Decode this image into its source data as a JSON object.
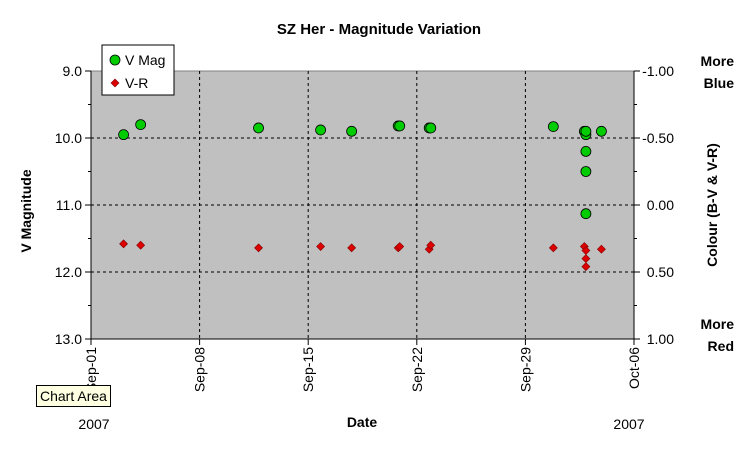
{
  "chart_data": {
    "type": "scatter",
    "title": "SZ Her - Magnitude Variation",
    "xlabel": "Date",
    "ylabel_left": "V Magnitude",
    "ylabel_right": "Colour (B-V & V-R)",
    "right_top_label": [
      "More",
      "Blue"
    ],
    "right_bottom_label": [
      "More",
      "Red"
    ],
    "year_left": "2007",
    "year_right": "2007",
    "x_ticks": [
      "Sep-01",
      "Sep-08",
      "Sep-15",
      "Sep-22",
      "Sep-29",
      "Oct-06"
    ],
    "x_range_days": [
      0,
      35
    ],
    "y_left_range": [
      9.0,
      13.0
    ],
    "y_left_inverted": true,
    "y_left_ticks": [
      "9.0",
      "10.0",
      "11.0",
      "12.0",
      "13.0"
    ],
    "y_right_range": [
      -1.0,
      1.0
    ],
    "y_right_inverted": true,
    "y_right_ticks": [
      "-1.00",
      "-0.50",
      "0.00",
      "0.50",
      "1.00"
    ],
    "grid": true,
    "legend_position": "top-left",
    "plot_background": "#c0c0c0",
    "series": [
      {
        "name": "V Mag",
        "axis": "left",
        "color": "#00cc00",
        "marker": "circle",
        "x": [
          2.1,
          3.2,
          10.8,
          14.8,
          16.8,
          19.8,
          19.9,
          21.8,
          21.9,
          29.8,
          31.8,
          31.9,
          31.9,
          31.9,
          31.9,
          31.9,
          32.9
        ],
        "y": [
          9.95,
          9.8,
          9.85,
          9.88,
          9.9,
          9.82,
          9.82,
          9.85,
          9.85,
          9.83,
          9.9,
          9.95,
          10.2,
          10.5,
          11.13,
          9.9,
          9.9
        ]
      },
      {
        "name": "V-R",
        "axis": "right",
        "color": "#dd0000",
        "marker": "diamond",
        "x": [
          2.1,
          3.2,
          10.8,
          14.8,
          16.8,
          19.8,
          19.9,
          21.8,
          21.9,
          29.8,
          31.8,
          31.9,
          31.9,
          31.9,
          32.9
        ],
        "y": [
          0.29,
          0.3,
          0.32,
          0.31,
          0.32,
          0.32,
          0.31,
          0.33,
          0.3,
          0.32,
          0.31,
          0.34,
          0.4,
          0.46,
          0.33
        ]
      }
    ]
  },
  "tooltip": "Chart Area"
}
